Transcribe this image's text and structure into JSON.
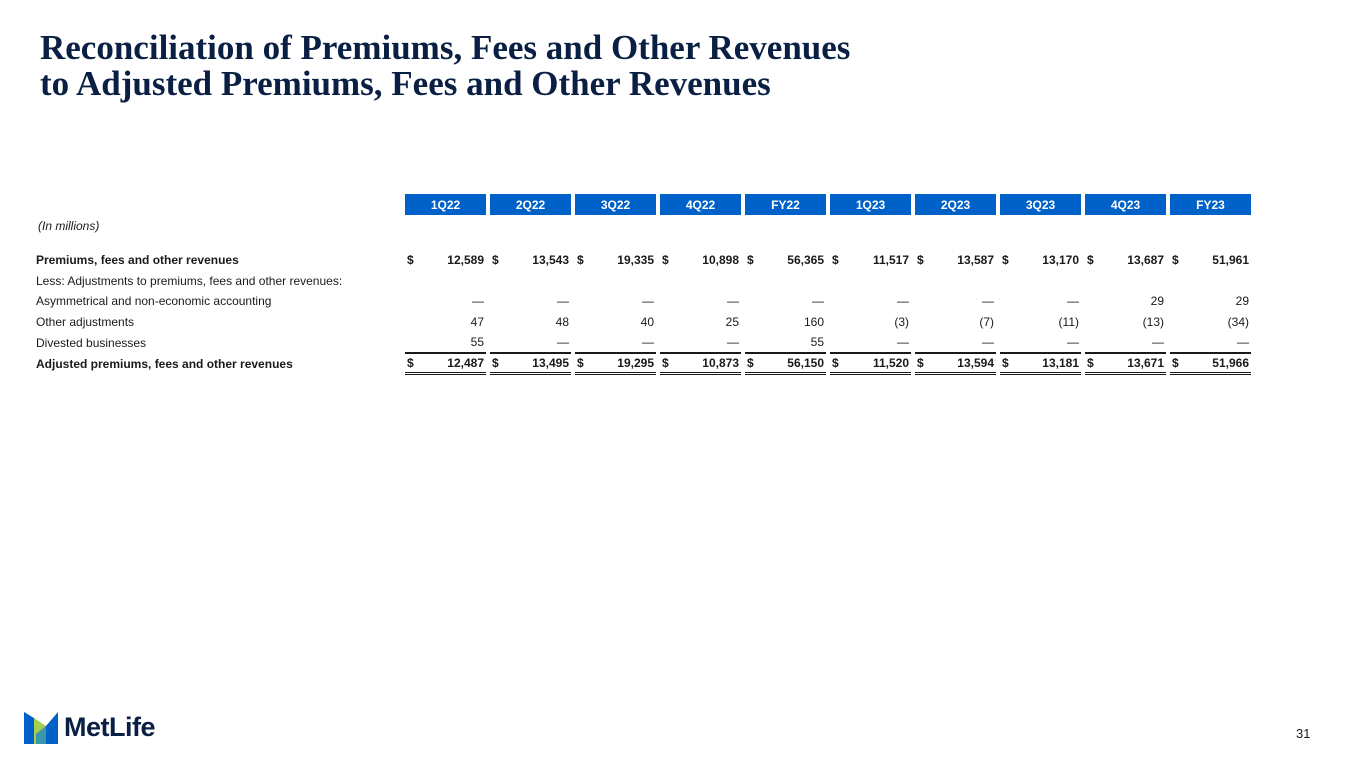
{
  "title": {
    "line1": "Reconciliation of Premiums, Fees and Other Revenues",
    "line2": "to Adjusted Premiums, Fees and Other Revenues"
  },
  "units_note": "(In millions)",
  "columns": [
    "1Q22",
    "2Q22",
    "3Q22",
    "4Q22",
    "FY22",
    "1Q23",
    "2Q23",
    "3Q23",
    "4Q23",
    "FY23"
  ],
  "currency_symbol": "$",
  "rows": {
    "premiums": {
      "label": "Premiums, fees and other revenues",
      "values": [
        "12,589",
        "13,543",
        "19,335",
        "10,898",
        "56,365",
        "11,517",
        "13,587",
        "13,170",
        "13,687",
        "51,961"
      ]
    },
    "less_header": {
      "label": "Less: Adjustments to premiums, fees and other revenues:"
    },
    "asymmetrical": {
      "label": "Asymmetrical and non-economic accounting",
      "values": [
        "—",
        "—",
        "—",
        "—",
        "—",
        "—",
        "—",
        "—",
        "29",
        "29"
      ]
    },
    "other_adjustments": {
      "label": "Other adjustments",
      "values": [
        "47",
        "48",
        "40",
        "25",
        "160",
        "(3)",
        "(7)",
        "(11)",
        "(13)",
        "(34)"
      ]
    },
    "divested": {
      "label": "Divested businesses",
      "values": [
        "55",
        "—",
        "—",
        "—",
        "55",
        "—",
        "—",
        "—",
        "—",
        "—"
      ]
    },
    "adjusted": {
      "label": "Adjusted premiums, fees and other revenues",
      "values": [
        "12,487",
        "13,495",
        "19,295",
        "10,873",
        "56,150",
        "11,520",
        "13,594",
        "13,181",
        "13,671",
        "51,966"
      ]
    }
  },
  "logo": {
    "text": "MetLife",
    "colors": {
      "blue": "#0061c8",
      "green": "#a4ce4e",
      "navy": "#0a1f44"
    }
  },
  "page_number": "31"
}
